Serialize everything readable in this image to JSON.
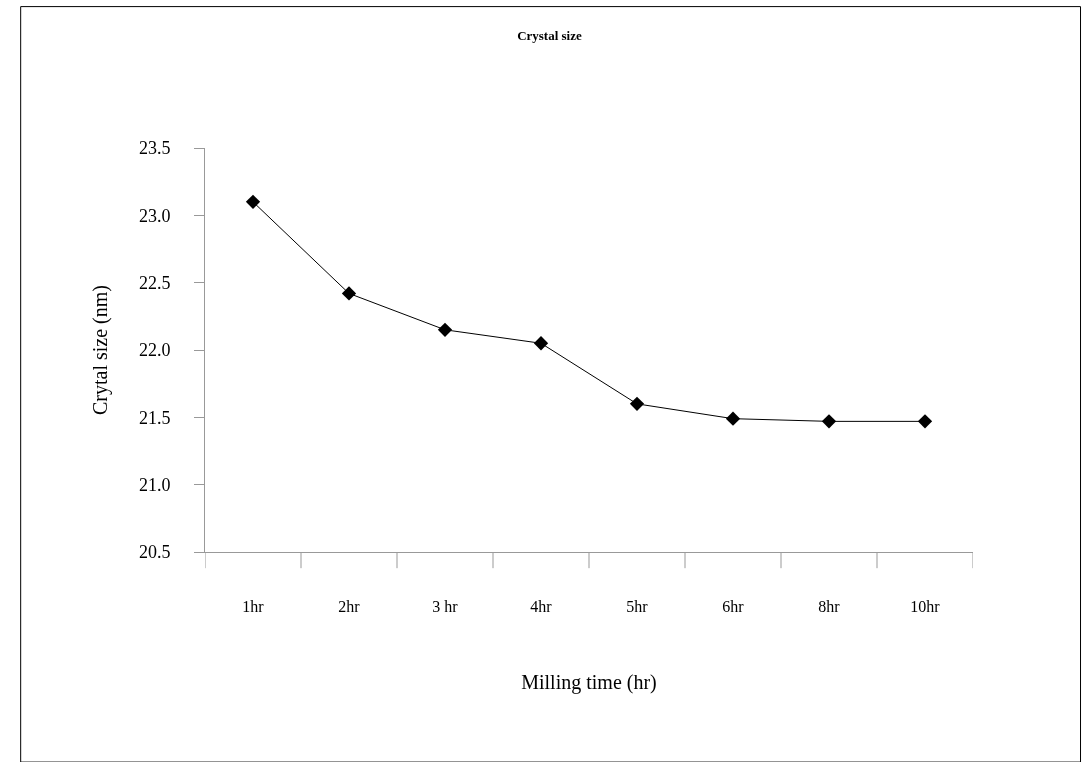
{
  "chart_data": {
    "type": "line",
    "title": "Crystal size",
    "xlabel": "Milling time (hr)",
    "ylabel": "Crytal size (nm)",
    "categories": [
      "1hr",
      "2hr",
      "3 hr",
      "4hr",
      "5hr",
      "6hr",
      "8hr",
      "10hr"
    ],
    "series": [
      {
        "color": "#000000",
        "values": [
          23.1,
          22.42,
          22.15,
          22.05,
          21.6,
          21.49,
          21.47,
          21.47
        ]
      }
    ],
    "ylim": [
      20.5,
      23.5
    ],
    "yticks": [
      20.5,
      {
        "value": 21,
        "label": "21.0"
      },
      21.5,
      {
        "value": 22,
        "label": "22.0"
      },
      22.5,
      {
        "value": 23,
        "label": "23.0"
      },
      23.5
    ],
    "marker": "diamond",
    "line_style": "solid"
  }
}
